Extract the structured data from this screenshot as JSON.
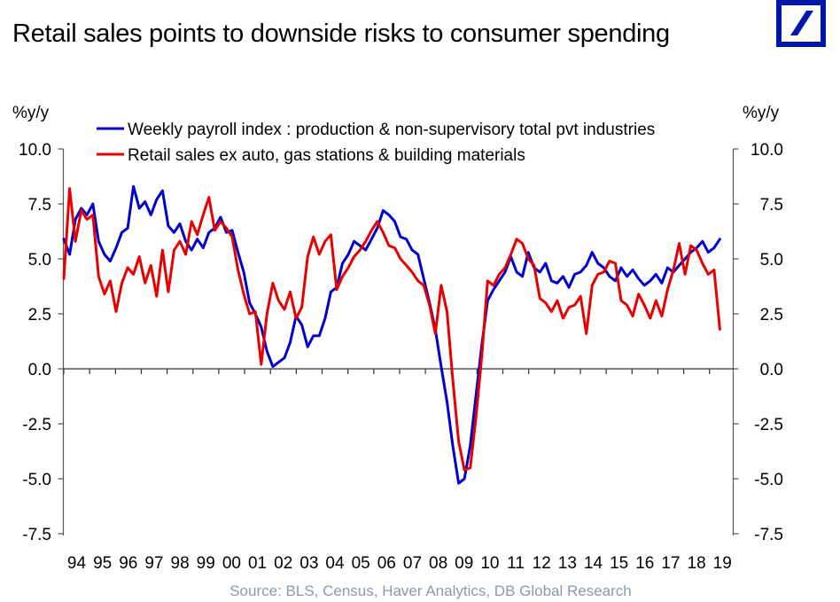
{
  "header": {
    "title": "Retail sales points to downside risks to consumer spending",
    "logo": "deutsche-bank-logo",
    "logo_color": "#0018a8"
  },
  "footer": {
    "source": "Source: BLS, Census, Haver Analytics, DB Global Research"
  },
  "chart_data": {
    "type": "line",
    "title": "Retail sales points to downside risks to consumer spending",
    "xlabel": "",
    "ylabel_left": "%y/y",
    "ylabel_right": "%y/y",
    "ylim": [
      -7.5,
      10.0
    ],
    "yticks": [
      10.0,
      7.5,
      5.0,
      2.5,
      0.0,
      -2.5,
      -5.0,
      -7.5
    ],
    "ytick_labels": [
      "10.0",
      "7.5",
      "5.0",
      "2.5",
      "0.0",
      "-2.5",
      "-5.0",
      "-7.5"
    ],
    "xlim": [
      1994.0,
      2019.4
    ],
    "xtick_labels": [
      "94",
      "95",
      "96",
      "97",
      "98",
      "99",
      "00",
      "01",
      "02",
      "03",
      "04",
      "05",
      "06",
      "07",
      "08",
      "09",
      "10",
      "11",
      "12",
      "13",
      "14",
      "15",
      "16",
      "17",
      "18",
      "19"
    ],
    "grid": false,
    "legend_position": "top",
    "x_step_years": 0.3333,
    "x_start": 1994.0,
    "series": [
      {
        "name": "Weekly payroll index : production & non-supervisory total pvt industries",
        "color": "#0000cc",
        "values": [
          5.9,
          5.2,
          6.8,
          7.3,
          7.0,
          7.5,
          5.8,
          5.2,
          4.9,
          5.5,
          6.2,
          6.4,
          8.3,
          7.3,
          7.6,
          7.0,
          7.7,
          8.1,
          6.5,
          6.2,
          6.6,
          5.8,
          5.4,
          5.9,
          5.5,
          6.2,
          6.4,
          6.9,
          6.2,
          6.3,
          5.3,
          4.4,
          3.0,
          2.5,
          1.9,
          0.8,
          0.1,
          0.3,
          0.5,
          1.2,
          2.4,
          2.0,
          1.0,
          1.5,
          1.5,
          2.3,
          3.5,
          3.7,
          4.8,
          5.2,
          5.8,
          5.6,
          5.4,
          5.9,
          6.4,
          7.2,
          7.0,
          6.7,
          6.0,
          5.9,
          5.4,
          5.2,
          4.1,
          3.0,
          1.8,
          0.1,
          -1.5,
          -3.5,
          -5.2,
          -5.0,
          -3.5,
          -1.2,
          1.1,
          3.1,
          3.6,
          4.0,
          4.4,
          5.1,
          4.4,
          4.2,
          5.3,
          4.6,
          4.4,
          4.8,
          4.0,
          3.9,
          4.2,
          3.7,
          4.3,
          4.4,
          4.7,
          5.3,
          4.8,
          4.6,
          4.2,
          4.0,
          4.6,
          4.2,
          4.5,
          4.1,
          3.8,
          4.0,
          4.3,
          3.9,
          4.6,
          4.4,
          4.7,
          5.0,
          5.3,
          5.5,
          5.8,
          5.3,
          5.5,
          5.9
        ]
      },
      {
        "name": "Retail sales ex auto, gas stations & building materials",
        "color": "#e60000",
        "values": [
          4.1,
          8.2,
          5.8,
          7.2,
          6.8,
          7.0,
          4.2,
          3.4,
          4.0,
          2.6,
          3.9,
          4.6,
          4.3,
          5.1,
          3.9,
          4.7,
          3.3,
          5.4,
          3.5,
          5.4,
          5.8,
          5.2,
          6.7,
          6.1,
          7.0,
          7.8,
          6.3,
          6.7,
          6.4,
          6.0,
          4.5,
          3.4,
          2.5,
          2.6,
          0.2,
          2.5,
          3.9,
          3.1,
          2.7,
          3.5,
          2.3,
          2.8,
          5.1,
          6.0,
          5.2,
          5.8,
          6.1,
          3.6,
          4.2,
          4.6,
          5.1,
          5.4,
          5.8,
          6.3,
          6.7,
          6.2,
          5.6,
          5.5,
          5.0,
          4.7,
          4.4,
          4.0,
          3.8,
          2.9,
          1.6,
          3.8,
          2.6,
          -0.5,
          -3.3,
          -4.6,
          -4.5,
          -2.2,
          0.6,
          4.0,
          3.8,
          4.3,
          4.6,
          5.2,
          5.9,
          5.7,
          5.0,
          4.7,
          3.2,
          3.0,
          2.6,
          3.1,
          2.3,
          2.8,
          2.9,
          3.3,
          1.6,
          3.8,
          4.3,
          4.4,
          4.9,
          4.8,
          3.1,
          2.9,
          2.4,
          3.4,
          2.9,
          2.3,
          3.1,
          2.4,
          3.6,
          4.5,
          5.7,
          4.3,
          5.6,
          5.4,
          4.8,
          4.3,
          4.5,
          1.8
        ]
      }
    ]
  }
}
